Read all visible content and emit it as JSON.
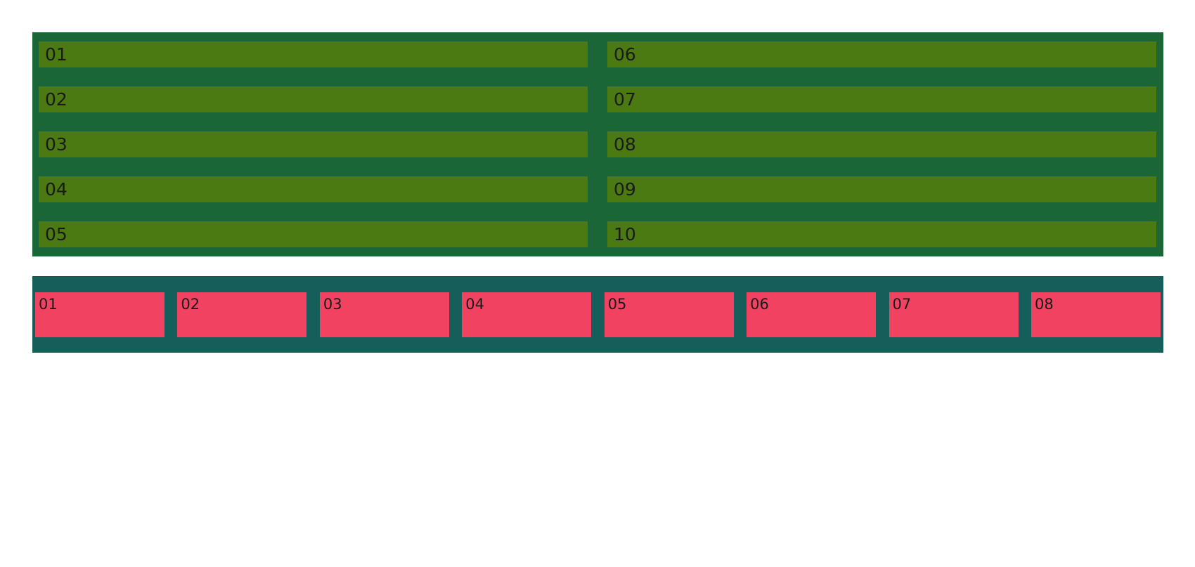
{
  "colors": {
    "background": "#ffffff",
    "top_container": "#1a6636",
    "top_item": "#4a7a11",
    "bottom_container": "#155e5a",
    "bottom_item": "#f24262",
    "text": "#1a1a1a"
  },
  "top_grid": {
    "items": [
      "01",
      "02",
      "03",
      "04",
      "05",
      "06",
      "07",
      "08",
      "09",
      "10"
    ]
  },
  "bottom_row": {
    "items": [
      "01",
      "02",
      "03",
      "04",
      "05",
      "06",
      "07",
      "08"
    ]
  }
}
